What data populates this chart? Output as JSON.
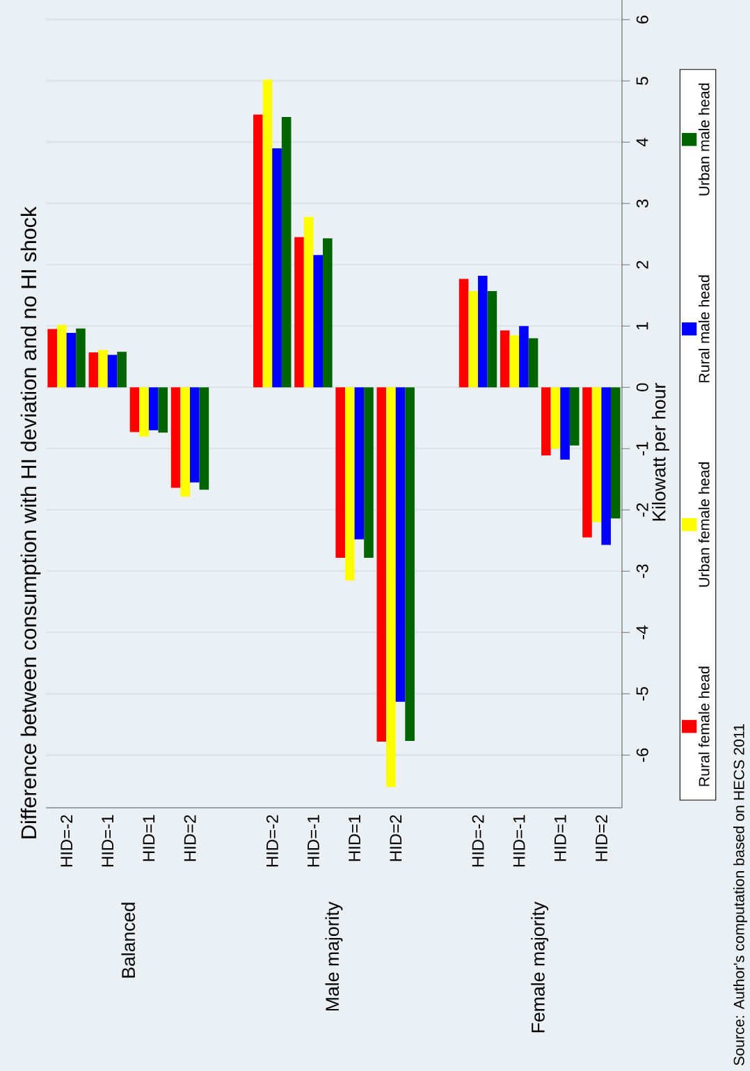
{
  "chart_data": {
    "type": "bar",
    "subtitle": "Difference between consumption with HI deviation and no HI shock",
    "ylabel": "Kilowatt per hour",
    "categories": [
      "HID=-2",
      "HID=-1",
      "HID=1",
      "HID=2",
      null,
      "HID=-2",
      "HID=-1",
      "HID=1",
      "HID=2",
      null,
      "HID=-2",
      "HID=-1",
      "HID=1",
      "HID=2"
    ],
    "series": [
      {
        "name": "Rural female head",
        "color": "#ff0000",
        "values": [
          0.95,
          0.57,
          -0.73,
          -1.64,
          null,
          4.45,
          2.45,
          -2.78,
          -5.78,
          null,
          1.77,
          0.93,
          -1.11,
          -2.45
        ]
      },
      {
        "name": "Urban female head",
        "color": "#ffff00",
        "values": [
          1.02,
          0.61,
          -0.8,
          -1.78,
          null,
          5.02,
          2.78,
          -3.15,
          -6.52,
          null,
          1.57,
          0.85,
          -1.0,
          -2.2
        ]
      },
      {
        "name": "Rural male head",
        "color": "#0000ff",
        "values": [
          0.89,
          0.53,
          -0.7,
          -1.55,
          null,
          3.9,
          2.16,
          -2.48,
          -5.13,
          null,
          1.82,
          1.0,
          -1.18,
          -2.57
        ]
      },
      {
        "name": "Urban male head",
        "color": "#006400",
        "values": [
          0.96,
          0.58,
          -0.74,
          -1.67,
          null,
          4.41,
          2.43,
          -2.78,
          -5.77,
          null,
          1.57,
          0.8,
          -0.95,
          -2.14
        ]
      }
    ],
    "ylim": [
      -6.86,
      6.32
    ],
    "yticks": [
      -6,
      -5,
      -4,
      -3,
      -2,
      -1,
      0,
      1,
      2,
      3,
      4,
      5,
      6
    ],
    "grid": "y",
    "legend": "right",
    "annotations": [
      "Balanced",
      "Male majority",
      "Female majority",
      "Source: Author's computation based on HECS 2011"
    ]
  }
}
